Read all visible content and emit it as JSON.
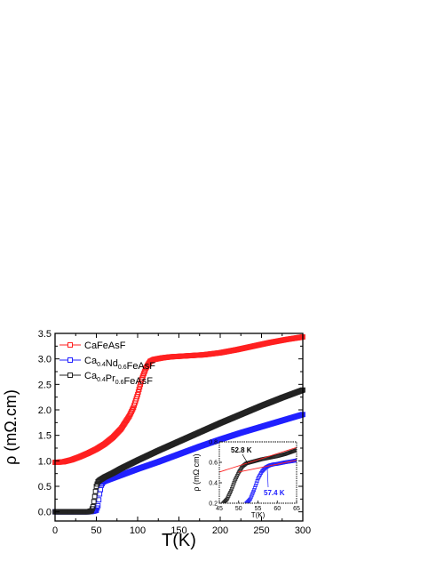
{
  "chart_data": [
    {
      "type": "scatter",
      "role": "main",
      "xlabel": "T(K)",
      "ylabel": "ρ (mΩ.cm)",
      "xlim": [
        0,
        300
      ],
      "ylim": [
        -0.18,
        3.5
      ],
      "xticks": [
        0,
        50,
        100,
        150,
        200,
        250,
        300
      ],
      "yticks": [
        0.0,
        0.5,
        1.0,
        1.5,
        2.0,
        2.5,
        3.0,
        3.5
      ],
      "xtick_labels": [
        "0",
        "50",
        "100",
        "150",
        "200",
        "250",
        "300"
      ],
      "ytick_labels": [
        "0.0",
        "0.5",
        "1.0",
        "1.5",
        "2.0",
        "2.5",
        "3.0",
        "3.5"
      ],
      "legend_position": "top-left",
      "grid": false,
      "series": [
        {
          "name": "CaFeAsF",
          "legend_parts": [
            [
              "CaFeAsF",
              ""
            ]
          ],
          "color": "#ff2020",
          "marker": "open-square",
          "x": [
            0,
            10,
            20,
            30,
            40,
            50,
            60,
            70,
            80,
            90,
            95,
            100,
            105,
            110,
            115,
            120,
            130,
            140,
            160,
            180,
            200,
            220,
            240,
            260,
            280,
            300
          ],
          "y": [
            0.97,
            0.98,
            1.02,
            1.08,
            1.15,
            1.23,
            1.33,
            1.46,
            1.63,
            1.88,
            2.05,
            2.3,
            2.6,
            2.82,
            2.95,
            2.99,
            3.02,
            3.04,
            3.06,
            3.08,
            3.12,
            3.18,
            3.25,
            3.32,
            3.38,
            3.43
          ]
        },
        {
          "name": "Ca0.4Nd0.6FeAsF",
          "legend_parts": [
            [
              "Ca",
              "0.4"
            ],
            [
              "Nd",
              "0.6"
            ],
            [
              "FeAsF",
              ""
            ]
          ],
          "color": "#2020ff",
          "marker": "open-square",
          "x": [
            0,
            20,
            40,
            46,
            50,
            52,
            54,
            56,
            58,
            60,
            70,
            80,
            100,
            125,
            150,
            175,
            200,
            225,
            250,
            275,
            300
          ],
          "y": [
            0.0,
            0.0,
            0.0,
            0.01,
            0.03,
            0.12,
            0.35,
            0.52,
            0.58,
            0.6,
            0.66,
            0.72,
            0.84,
            0.98,
            1.13,
            1.28,
            1.42,
            1.55,
            1.67,
            1.79,
            1.91
          ]
        },
        {
          "name": "Ca0.4Pr0.6FeAsF",
          "legend_parts": [
            [
              "Ca",
              "0.4"
            ],
            [
              "Pr",
              "0.6"
            ],
            [
              "FeAsF",
              ""
            ]
          ],
          "color": "#222222",
          "marker": "open-square",
          "x": [
            0,
            20,
            40,
            44,
            46,
            48,
            50,
            52,
            54,
            56,
            60,
            70,
            80,
            100,
            125,
            150,
            175,
            200,
            225,
            250,
            275,
            300
          ],
          "y": [
            0.0,
            0.0,
            0.0,
            0.02,
            0.1,
            0.3,
            0.5,
            0.59,
            0.62,
            0.64,
            0.68,
            0.76,
            0.85,
            1.01,
            1.2,
            1.38,
            1.56,
            1.74,
            1.91,
            2.08,
            2.24,
            2.39
          ]
        }
      ]
    },
    {
      "type": "scatter",
      "role": "inset",
      "xlabel": "T(K)",
      "ylabel": "ρ (mΩ cm)",
      "xlim": [
        45,
        65
      ],
      "ylim": [
        0.2,
        0.8
      ],
      "xticks": [
        45,
        50,
        55,
        60,
        65
      ],
      "yticks": [
        0.2,
        0.4,
        0.6,
        0.8
      ],
      "xtick_labels": [
        "45",
        "50",
        "55",
        "60",
        "65"
      ],
      "ytick_labels": [
        "0.2",
        "0.4",
        "0.6",
        "0.8"
      ],
      "annotations": [
        {
          "text": "52.8 K",
          "x": 52.8,
          "color": "#000000"
        },
        {
          "text": "57.4 K",
          "x": 57.4,
          "color": "#2020ff"
        }
      ],
      "fit_line_color": "#ff2020",
      "series": [
        {
          "name": "Ca0.4Pr0.6FeAsF",
          "color": "#222222",
          "x": [
            46,
            47,
            48,
            49,
            50,
            51,
            52,
            53,
            54,
            56,
            58,
            60,
            62,
            65
          ],
          "y": [
            0.2,
            0.24,
            0.32,
            0.42,
            0.5,
            0.56,
            0.59,
            0.6,
            0.61,
            0.63,
            0.645,
            0.66,
            0.68,
            0.72
          ]
        },
        {
          "name": "Ca0.4Nd0.6FeAsF",
          "color": "#2020ff",
          "x": [
            52,
            53,
            54,
            55,
            56,
            57,
            58,
            59,
            60,
            62,
            64,
            65
          ],
          "y": [
            0.2,
            0.24,
            0.33,
            0.44,
            0.51,
            0.55,
            0.57,
            0.58,
            0.585,
            0.6,
            0.612,
            0.62
          ]
        }
      ],
      "fit_lines": [
        {
          "color": "#ff2020",
          "x": [
            45,
            65
          ],
          "y": [
            0.505,
            0.745
          ]
        },
        {
          "color": "#ff2020",
          "x": [
            50,
            65
          ],
          "y": [
            0.505,
            0.62
          ]
        }
      ]
    }
  ]
}
